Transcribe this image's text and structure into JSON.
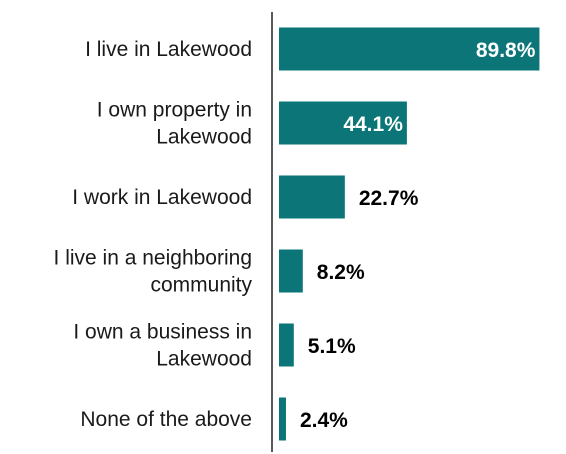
{
  "chart_data": {
    "type": "bar",
    "orientation": "horizontal",
    "categories": [
      [
        "I live in Lakewood"
      ],
      [
        "I own property in",
        "Lakewood"
      ],
      [
        "I work in Lakewood"
      ],
      [
        "I live in a neighboring",
        "community"
      ],
      [
        "I own a business in",
        "Lakewood"
      ],
      [
        "None of the above"
      ]
    ],
    "values": [
      89.8,
      44.1,
      22.7,
      8.2,
      5.1,
      2.4
    ],
    "value_labels": [
      "89.8%",
      "44.1%",
      "22.7%",
      "8.2%",
      "5.1%",
      "2.4%"
    ],
    "xlim": [
      0,
      100
    ],
    "grid": false,
    "colors": {
      "bar": "#0b7577",
      "inside_label": "#ffffff",
      "outside_label": "#000000",
      "axis": "#222222"
    }
  }
}
